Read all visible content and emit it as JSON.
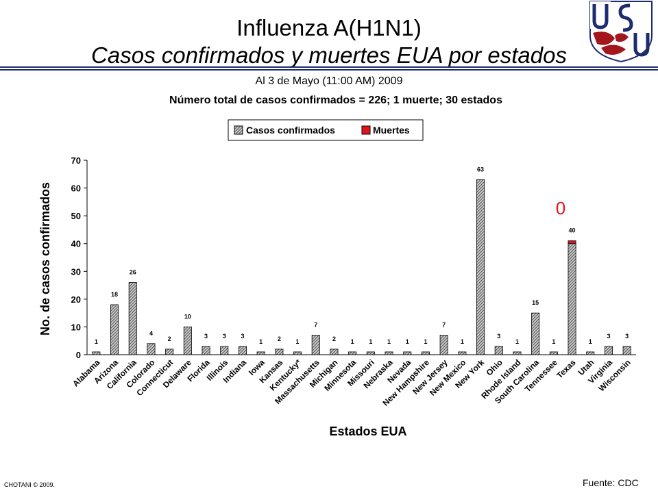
{
  "header": {
    "title": "Influenza A(H1N1)",
    "subtitle": "Casos confirmados y muertes EUA por estados",
    "date_line": "Al 3 de Mayo (11:00 AM) 2009",
    "summary": "Número total de casos confirmados = 226; 1 muerte; 30 estados"
  },
  "logo": {
    "text": "USU"
  },
  "annotation": "0",
  "footer": {
    "copyright": "CHOTANI © 2009.",
    "source": "Fuente: CDC"
  },
  "colors": {
    "rule": "#1d2c6e",
    "deaths": "#e0141e",
    "cases_fill": "#8a8a8a"
  },
  "chart_data": {
    "type": "bar",
    "stacked": true,
    "xlabel": "Estados EUA",
    "ylabel": "No. de casos confirmados",
    "ylim": [
      0,
      70
    ],
    "yticks": [
      0,
      10,
      20,
      30,
      40,
      50,
      60,
      70
    ],
    "legend_position": "top",
    "categories": [
      "Alabama",
      "Arizona",
      "California",
      "Colorado",
      "Connecticut",
      "Delaware",
      "Florida",
      "Illinois",
      "Indiana",
      "Iowa",
      "Kansas",
      "Kentucky*",
      "Massachusetts",
      "Michigan",
      "Minnesota",
      "Missouri",
      "Nebraska",
      "Nevada",
      "New Hampshire",
      "New Jersey",
      "New Mexico",
      "New York",
      "Ohio",
      "Rhode Island",
      "South Carolina",
      "Tennessee",
      "Texas",
      "Utah",
      "Virginia",
      "Wisconsin"
    ],
    "series": [
      {
        "name": "Casos confirmados",
        "values": [
          1,
          18,
          26,
          4,
          2,
          10,
          3,
          3,
          3,
          1,
          2,
          1,
          7,
          2,
          1,
          1,
          1,
          1,
          1,
          7,
          1,
          63,
          3,
          1,
          15,
          1,
          40,
          1,
          3,
          3
        ]
      },
      {
        "name": "Muertes",
        "values": [
          0,
          0,
          0,
          0,
          0,
          0,
          0,
          0,
          0,
          0,
          0,
          0,
          0,
          0,
          0,
          0,
          0,
          0,
          0,
          0,
          0,
          0,
          0,
          0,
          0,
          0,
          1,
          0,
          0,
          0
        ]
      }
    ],
    "data_labels": [
      "1",
      "18",
      "26",
      "4",
      "2",
      "10",
      "3",
      "3",
      "3",
      "1",
      "2",
      "1",
      "7",
      "2",
      "1",
      "1",
      "1",
      "1",
      "1",
      "7",
      "1",
      "63",
      "3",
      "1",
      "15",
      "1",
      "40",
      "1",
      "3",
      "3"
    ]
  }
}
